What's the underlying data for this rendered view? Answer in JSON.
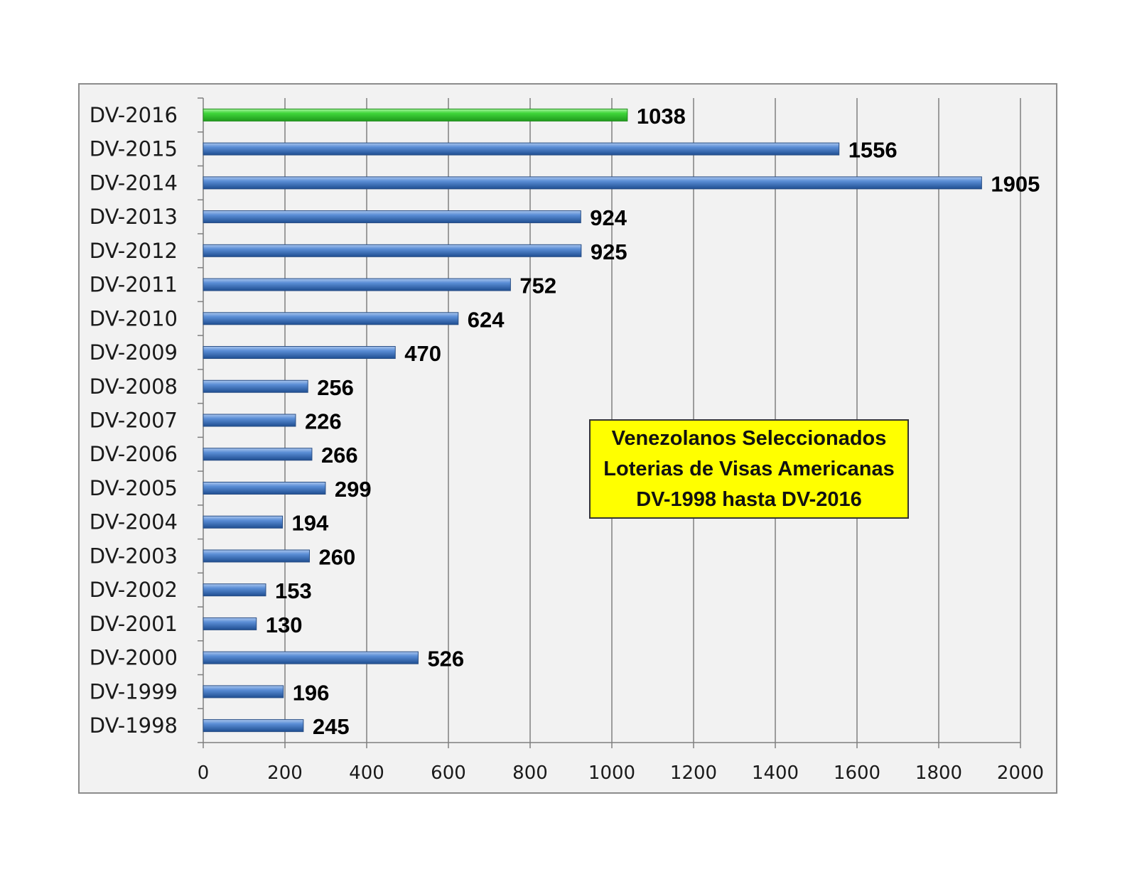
{
  "chart_data": {
    "type": "bar",
    "orientation": "horizontal",
    "categories": [
      "DV-2016",
      "DV-2015",
      "DV-2014",
      "DV-2013",
      "DV-2012",
      "DV-2011",
      "DV-2010",
      "DV-2009",
      "DV-2008",
      "DV-2007",
      "DV-2006",
      "DV-2005",
      "DV-2004",
      "DV-2003",
      "DV-2002",
      "DV-2001",
      "DV-2000",
      "DV-1999",
      "DV-1998"
    ],
    "values": [
      1038,
      1556,
      1905,
      924,
      925,
      752,
      624,
      470,
      256,
      226,
      266,
      299,
      194,
      260,
      153,
      130,
      526,
      196,
      245
    ],
    "highlight_category": "DV-2016",
    "xlim": [
      0,
      2000
    ],
    "xticks": [
      0,
      200,
      400,
      600,
      800,
      1000,
      1200,
      1400,
      1600,
      1800,
      2000
    ],
    "grid": "vertical",
    "colors": {
      "bar": "#4a7ec6",
      "bar_highlight": "#33cc33",
      "grid": "#7f7f7f",
      "background": "#f2f2f2"
    },
    "annotation": {
      "lines": [
        "Venezolanos Seleccionados",
        "Loterias de Visas Americanas",
        "DV-1998 hasta DV-2016"
      ],
      "background": "#ffff00"
    }
  }
}
